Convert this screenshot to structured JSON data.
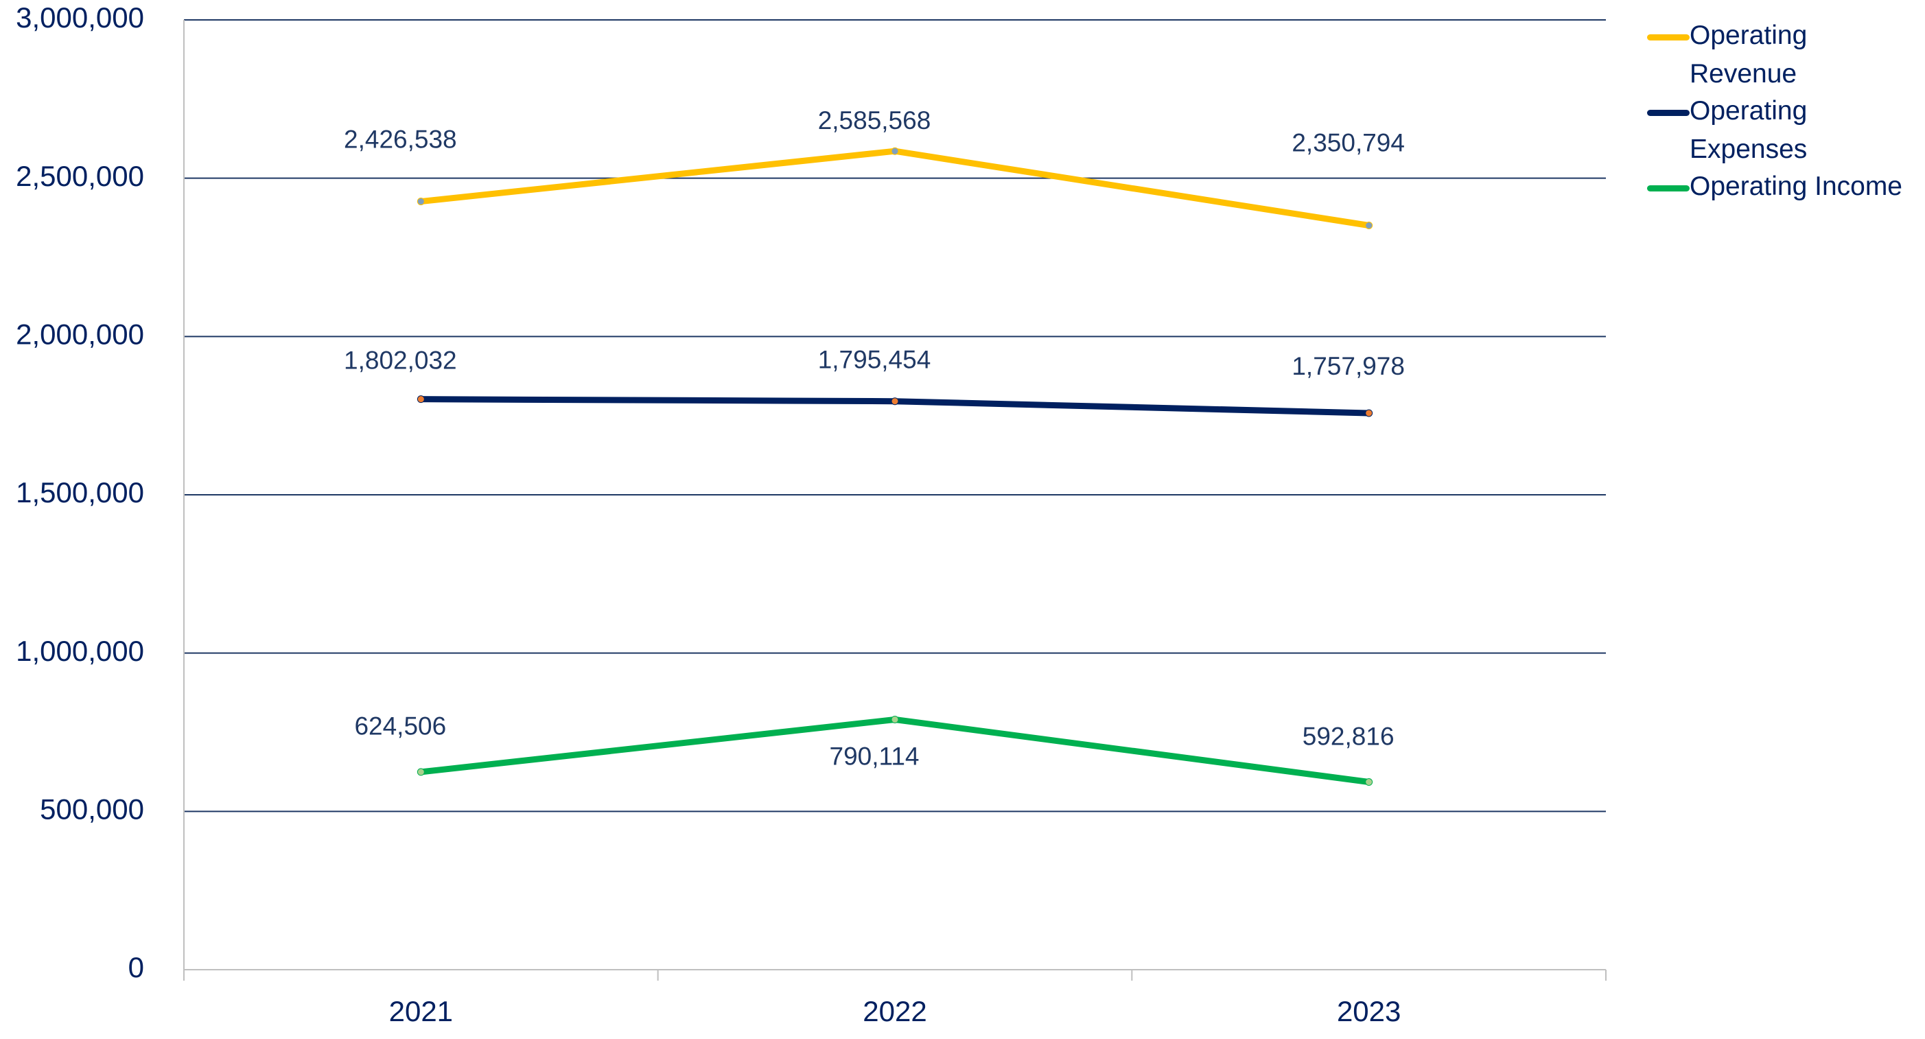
{
  "chart_data": {
    "type": "line",
    "categories": [
      "2021",
      "2022",
      "2023"
    ],
    "series": [
      {
        "name": "Operating Revenue",
        "color": "#FFC000",
        "values": [
          2426538,
          2585568,
          2350794
        ],
        "value_labels": [
          "2,426,538",
          "2,585,568",
          "2,350,794"
        ]
      },
      {
        "name": "Operating Expenses",
        "color": "#002060",
        "values": [
          1802032,
          1795454,
          1757978
        ],
        "value_labels": [
          "1,802,032",
          "1,795,454",
          "1,757,978"
        ]
      },
      {
        "name": "Operating Income",
        "color": "#00B050",
        "values": [
          624506,
          790114,
          592816
        ],
        "value_labels": [
          "624,506",
          "790,114",
          "592,816"
        ]
      }
    ],
    "ylim": [
      0,
      3000000
    ],
    "yticks": [
      0,
      {
        "value": 500000,
        "label": "500,000"
      },
      {
        "value": 1000000,
        "label": "1,000,000"
      },
      {
        "value": 1500000,
        "label": "1,500,000"
      },
      {
        "value": 2000000,
        "label": "2,000,000"
      },
      {
        "value": 2500000,
        "label": "2,500,000"
      },
      {
        "value": 3000000,
        "label": "3,000,000"
      }
    ],
    "grid": true,
    "legend": "right"
  }
}
